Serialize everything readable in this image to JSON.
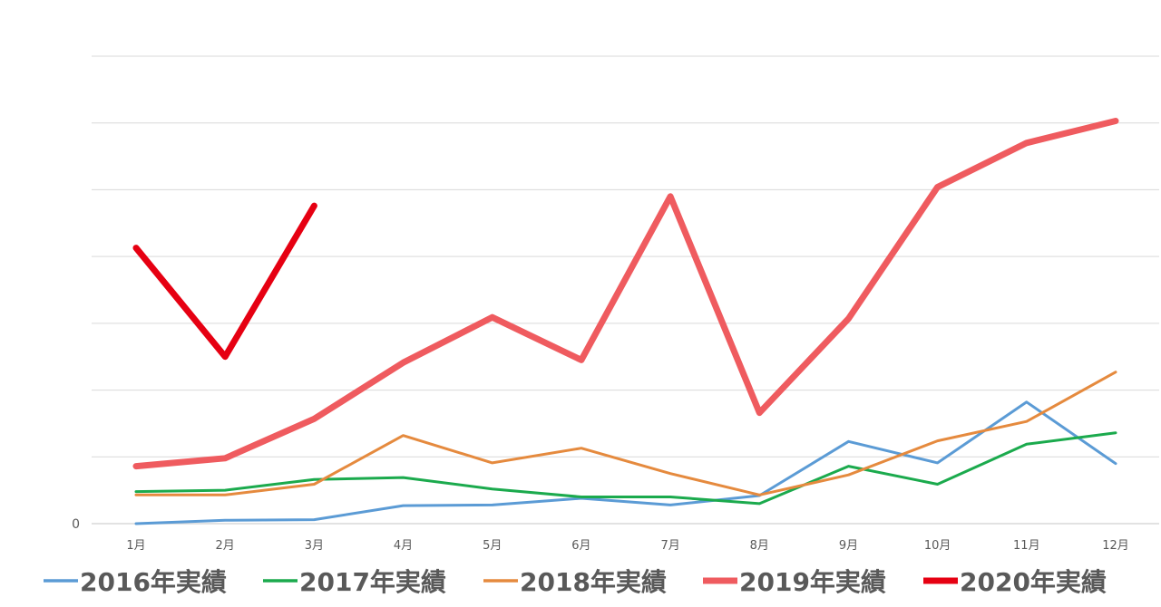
{
  "chart_data": {
    "type": "line",
    "categories": [
      "1月",
      "2月",
      "3月",
      "4月",
      "5月",
      "6月",
      "7月",
      "8月",
      "9月",
      "10月",
      "11月",
      "12月"
    ],
    "y_tick_labels": [
      "0"
    ],
    "ylim": [
      0,
      7
    ],
    "grid": true,
    "legend_position": "bottom",
    "series": [
      {
        "name": "2016年実績",
        "color": "#5B9BD5",
        "line_weight": "thin",
        "values": [
          0.0,
          0.05,
          0.06,
          0.27,
          0.28,
          0.38,
          0.28,
          0.42,
          1.23,
          0.91,
          1.82,
          0.9
        ]
      },
      {
        "name": "2017年実績",
        "color": "#1BAA4D",
        "line_weight": "thin",
        "values": [
          0.48,
          0.5,
          0.66,
          0.69,
          0.52,
          0.4,
          0.4,
          0.3,
          0.86,
          0.59,
          1.19,
          1.36
        ]
      },
      {
        "name": "2018年実績",
        "color": "#E58A3E",
        "line_weight": "thin",
        "values": [
          0.43,
          0.43,
          0.59,
          1.32,
          0.91,
          1.13,
          0.75,
          0.43,
          0.73,
          1.24,
          1.53,
          2.27
        ]
      },
      {
        "name": "2019年実績",
        "color": "#EF5B5F",
        "line_weight": "thick",
        "values": [
          0.86,
          0.98,
          1.57,
          2.41,
          3.09,
          2.45,
          4.9,
          1.66,
          3.07,
          5.04,
          5.7,
          6.03
        ]
      },
      {
        "name": "2020年実績",
        "color": "#E60012",
        "line_weight": "thick",
        "values": [
          4.13,
          2.5,
          4.76,
          null,
          null,
          null,
          null,
          null,
          null,
          null,
          null,
          null
        ]
      }
    ]
  }
}
